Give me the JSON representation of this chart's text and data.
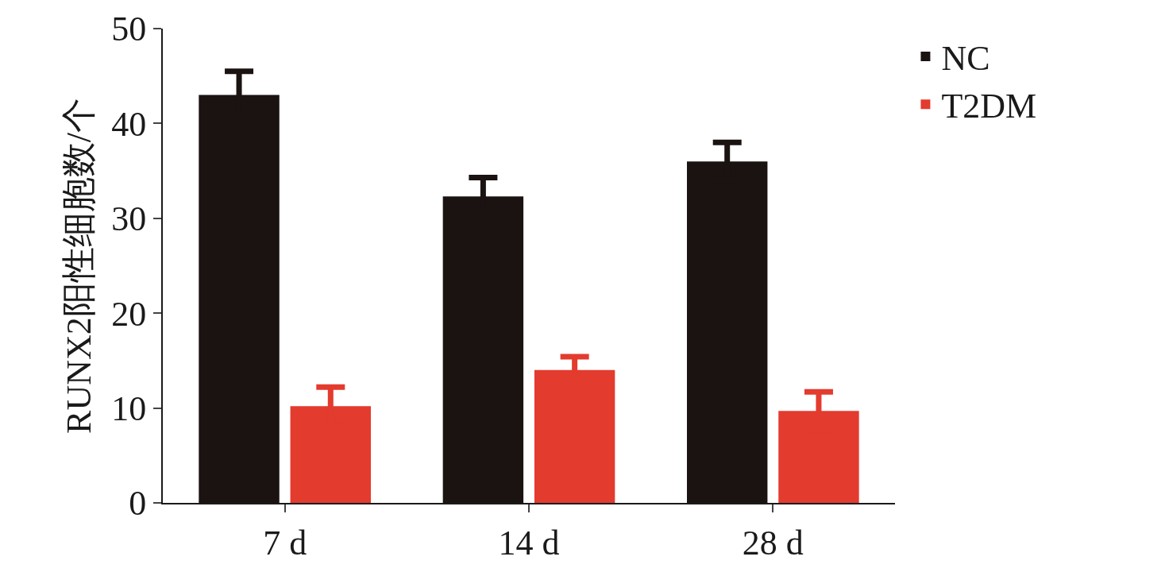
{
  "chart_data": {
    "type": "bar",
    "ylabel": "RUNX2阳性细胞数/个",
    "categories": [
      "7 d",
      "14 d",
      "28 d"
    ],
    "series": [
      {
        "name": "NC",
        "color": "#1a1311",
        "values": [
          43,
          32.3,
          36
        ],
        "errors": [
          2.5,
          2,
          2
        ]
      },
      {
        "name": "T2DM",
        "color": "#e33b2e",
        "values": [
          10.2,
          14,
          9.7
        ],
        "errors": [
          2,
          1.4,
          2
        ]
      }
    ],
    "ylim": [
      0,
      50
    ],
    "yticks": [
      0,
      10,
      20,
      30,
      40,
      50
    ],
    "legend": "top right"
  }
}
